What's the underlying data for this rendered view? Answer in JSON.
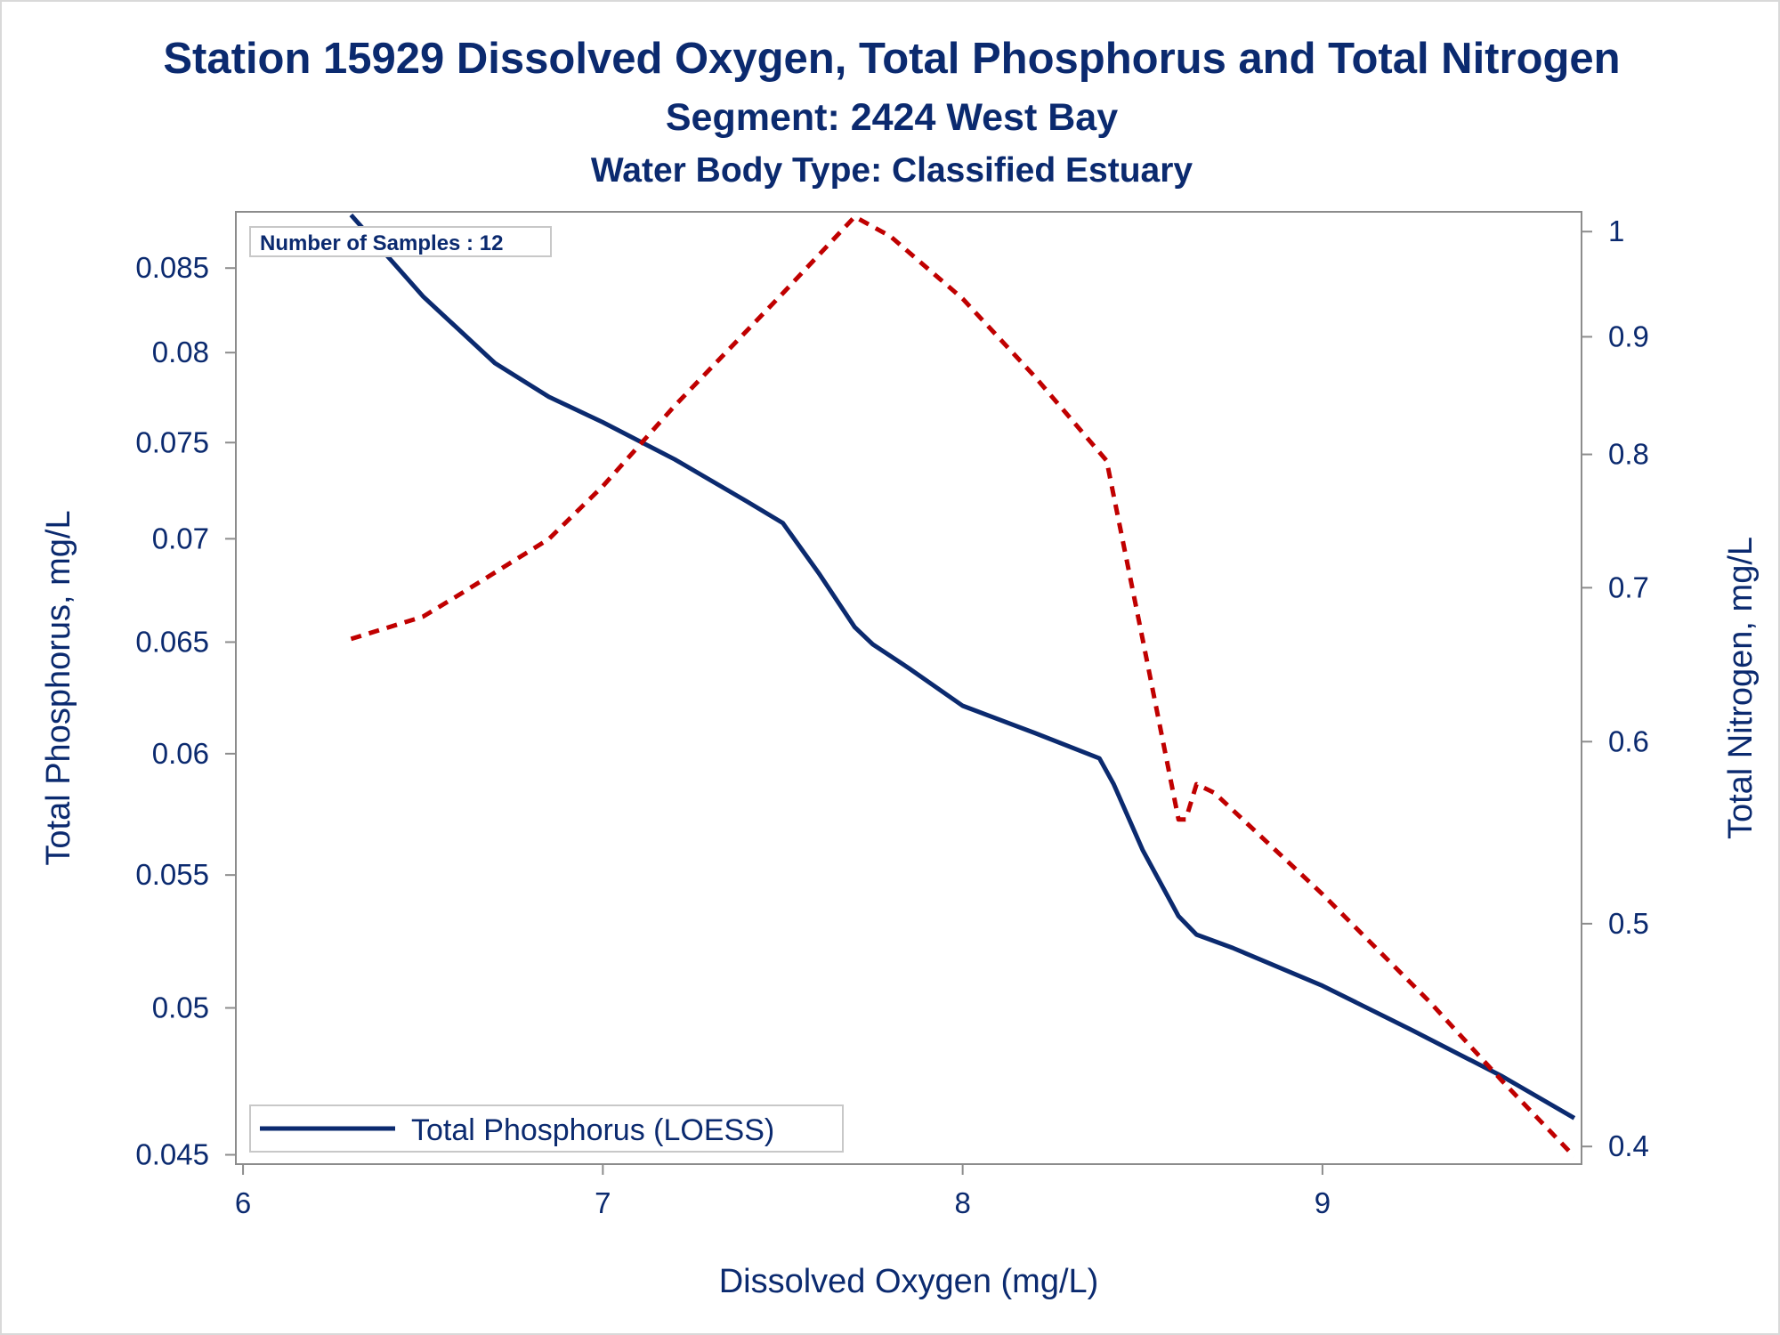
{
  "header": {
    "title": "Station 15929  Dissolved Oxygen, Total Phosphorus and Total Nitrogen",
    "subtitle": "Segment: 2424  West Bay",
    "subtitle2": "Water Body Type: Classified Estuary"
  },
  "colors": {
    "text": "#0b2a6f",
    "phosphorus_line": "#0b2a6f",
    "nitrogen_line": "#c00000",
    "axis": "#8c8c8c",
    "legend_border": "#c8c8c8"
  },
  "chart_data": {
    "type": "line",
    "title": "Station 15929  Dissolved Oxygen, Total Phosphorus and Total Nitrogen",
    "xlabel": "Dissolved Oxygen (mg/L)",
    "ylabel": "Total Phosphorus, mg/L",
    "y2label": "Total Nitrogen, mg/L",
    "xlim": [
      5.98,
      9.72
    ],
    "ylim": [
      0.0447,
      0.0885
    ],
    "y2lim": [
      0.393,
      1.02
    ],
    "y_scale": "log",
    "y2_scale": "log",
    "grid": false,
    "x_ticks": [
      6,
      7,
      8,
      9
    ],
    "x_tick_labels": [
      "6",
      "7",
      "8",
      "9"
    ],
    "y_ticks": [
      0.045,
      0.05,
      0.055,
      0.06,
      0.065,
      0.07,
      0.075,
      0.08,
      0.085
    ],
    "y_tick_labels": [
      "0.045",
      "0.05",
      "0.055",
      "0.06",
      "0.065",
      "0.07",
      "0.075",
      "0.08",
      "0.085"
    ],
    "y2_ticks": [
      0.4,
      0.5,
      0.6,
      0.7,
      0.8,
      0.9,
      1.0
    ],
    "y2_tick_labels": [
      "0.4",
      "0.5",
      "0.6",
      "0.7",
      "0.8",
      "0.9",
      "1"
    ],
    "inset_label": "Number of Samples : 12",
    "legend": {
      "position": "bottom-left",
      "entries": [
        "Total Phosphorus (LOESS)"
      ]
    },
    "series": [
      {
        "name": "Total Phosphorus (LOESS)",
        "axis": "left",
        "style": "solid",
        "x": [
          6.3,
          6.5,
          6.7,
          6.85,
          7.0,
          7.2,
          7.4,
          7.5,
          7.6,
          7.7,
          7.75,
          7.85,
          8.0,
          8.2,
          8.38,
          8.42,
          8.5,
          8.6,
          8.65,
          8.75,
          9.0,
          9.25,
          9.5,
          9.7
        ],
        "values": [
          0.0883,
          0.0833,
          0.0794,
          0.0775,
          0.0761,
          0.0741,
          0.0719,
          0.0708,
          0.0683,
          0.0657,
          0.0649,
          0.0638,
          0.0621,
          0.0609,
          0.0598,
          0.0587,
          0.056,
          0.0534,
          0.0527,
          0.0522,
          0.0508,
          0.0492,
          0.0476,
          0.0462
        ]
      },
      {
        "name": "Total Nitrogen",
        "axis": "right",
        "style": "dashed",
        "x": [
          6.3,
          6.5,
          6.6,
          6.85,
          7.0,
          7.2,
          7.5,
          7.7,
          7.8,
          8.0,
          8.2,
          8.4,
          8.5,
          8.6,
          8.62,
          8.65,
          8.7,
          9.0,
          9.3,
          9.5,
          9.7
        ],
        "values": [
          0.665,
          0.68,
          0.695,
          0.735,
          0.775,
          0.84,
          0.94,
          1.015,
          0.995,
          0.935,
          0.865,
          0.795,
          0.665,
          0.555,
          0.555,
          0.575,
          0.57,
          0.515,
          0.462,
          0.427,
          0.396
        ]
      }
    ]
  }
}
